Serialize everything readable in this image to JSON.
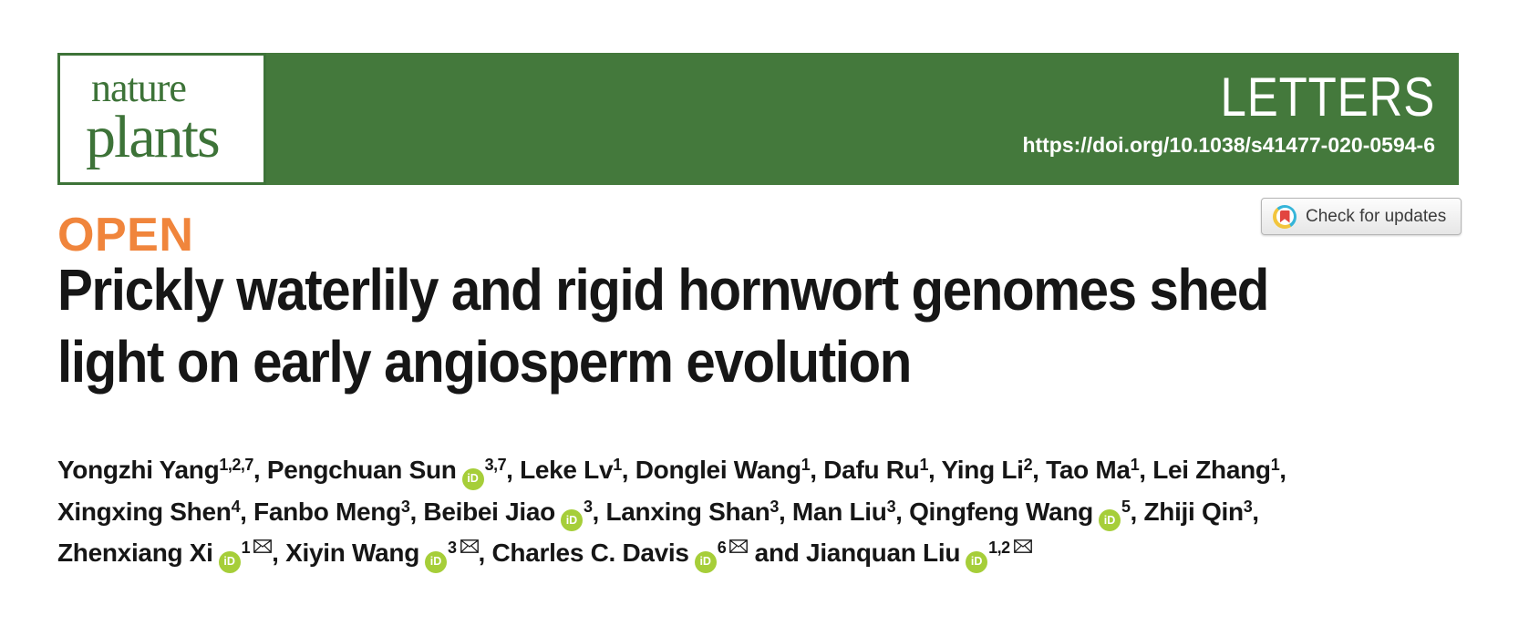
{
  "colors": {
    "green": "#44793C",
    "logo-green": "#3D7338",
    "orange": "#F0853C",
    "orcid-green": "#A6CE39",
    "cm-blue": "#35B5D9",
    "cm-yellow": "#F2C53D",
    "cm-red": "#E2453F",
    "text": "#161616",
    "badge-text": "#3C3C3C"
  },
  "banner": {
    "logo_line1": "nature",
    "logo_line2": "plants",
    "category": "LETTERS",
    "doi": "https://doi.org/10.1038/s41477-020-0594-6"
  },
  "badge": {
    "label": "Check for updates",
    "icon": "crossmark-circle-icon"
  },
  "article": {
    "open_label": "OPEN",
    "title_lines": [
      "Prickly waterlily and rigid hornwort genomes shed",
      "light on early angiosperm evolution"
    ]
  },
  "authors": {
    "separator": ", ",
    "final_separator": " and ",
    "orcid_icon_label": "iD",
    "envelope_icon": "envelope-outline",
    "list": [
      {
        "name": "Yongzhi Yang",
        "sup": "1,2,7"
      },
      {
        "name": "Pengchuan Sun",
        "orcid": true,
        "sup": "3,7"
      },
      {
        "name": "Leke Lv",
        "sup": "1"
      },
      {
        "name": "Donglei Wang",
        "sup": "1"
      },
      {
        "name": "Dafu Ru",
        "sup": "1"
      },
      {
        "name": "Ying Li",
        "sup": "2"
      },
      {
        "name": "Tao Ma",
        "sup": "1"
      },
      {
        "name": "Lei Zhang",
        "sup": "1",
        "break_after": true
      },
      {
        "name": "Xingxing Shen",
        "sup": "4"
      },
      {
        "name": "Fanbo Meng",
        "sup": "3"
      },
      {
        "name": "Beibei Jiao",
        "orcid": true,
        "sup": "3"
      },
      {
        "name": "Lanxing Shan",
        "sup": "3"
      },
      {
        "name": "Man Liu",
        "sup": "3"
      },
      {
        "name": "Qingfeng Wang",
        "orcid": true,
        "sup": "5"
      },
      {
        "name": "Zhiji Qin",
        "sup": "3",
        "break_after": true
      },
      {
        "name": "Zhenxiang Xi",
        "orcid": true,
        "sup": "1",
        "email": true
      },
      {
        "name": "Xiyin Wang",
        "orcid": true,
        "sup": "3",
        "email": true
      },
      {
        "name": "Charles C. Davis",
        "orcid": true,
        "sup": "6",
        "email": true
      },
      {
        "name": "Jianquan Liu",
        "orcid": true,
        "sup": "1,2",
        "email": true
      }
    ]
  }
}
